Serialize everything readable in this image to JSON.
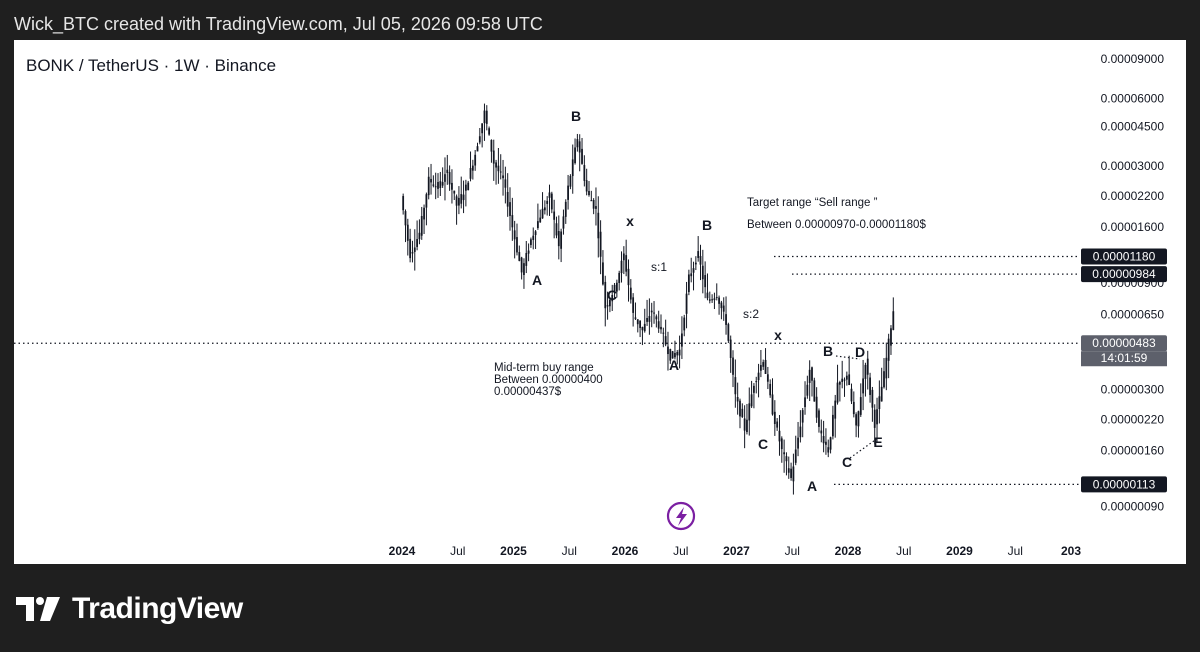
{
  "caption": "Wick_BTC created with TradingView.com, Jul 05, 2026 09:58 UTC",
  "symbol": "BONK / TetherUS · 1W · Binance",
  "brand": "TradingView",
  "logo_icon": "tradingview-logo-icon",
  "watermark_icon": "lightning-icon",
  "colors": {
    "candle": "#131722",
    "dotted": "#131722",
    "price_tag_bg": "#131722",
    "price_tag_text": "#ffffff",
    "current_tag_bg": "#5d606b",
    "watermark": "#7b1fa2",
    "frame": "#1f1f1f"
  },
  "chart_data": {
    "type": "line",
    "scale": "log",
    "y_ticks": [
      "0.00009000",
      "0.00006000",
      "0.00004500",
      "0.00003000",
      "0.00002200",
      "0.00001600",
      "0.00000900",
      "0.00000650",
      "0.00000300",
      "0.00000220",
      "0.00000160",
      "0.00000090"
    ],
    "x_ticks": [
      "2024",
      "Jul",
      "2025",
      "Jul",
      "2026",
      "Jul",
      "2027",
      "Jul",
      "2028",
      "Jul",
      "2029",
      "Jul",
      "203"
    ],
    "series": [
      {
        "x": [
          "2024-01",
          "2024-02",
          "2024-03",
          "2024-04",
          "2024-05",
          "2024-06",
          "2024-07",
          "2024-08",
          "2024-09",
          "2024-10",
          "2024-11",
          "2024-12",
          "2025-01",
          "2025-02",
          "2025-03",
          "2025-04",
          "2025-05",
          "2025-06",
          "2025-07",
          "2025-08",
          "2025-09",
          "2025-10",
          "2025-11",
          "2025-12",
          "2026-01",
          "2026-02",
          "2026-03",
          "2026-04",
          "2026-05",
          "2026-06",
          "2026-07",
          "2026-08",
          "2026-09",
          "2026-10",
          "2026-11",
          "2026-12",
          "2027-01",
          "2027-02",
          "2027-03",
          "2027-04",
          "2027-05",
          "2027-06",
          "2027-07",
          "2027-08",
          "2027-09",
          "2027-10",
          "2027-11",
          "2027-12",
          "2028-01",
          "2028-02",
          "2028-03",
          "2028-04",
          "2028-05",
          "2028-06"
        ],
        "values": [
          2.2e-05,
          1.2e-05,
          1.5e-05,
          2.6e-05,
          2.4e-05,
          2.8e-05,
          2e-05,
          2.4e-05,
          3.4e-05,
          5.2e-05,
          3.1e-05,
          2.6e-05,
          1.6e-05,
          1e-05,
          1.4e-05,
          1.8e-05,
          2.2e-05,
          1.3e-05,
          2.4e-05,
          4e-05,
          2.3e-05,
          1.9e-05,
          7e-06,
          8.5e-06,
          1.2e-05,
          6.5e-06,
          5.5e-06,
          6.8e-06,
          5.5e-06,
          4.2e-06,
          4.5e-06,
          9.5e-06,
          1.2e-05,
          7.5e-06,
          8e-06,
          6e-06,
          2.8e-06,
          2e-06,
          3.2e-06,
          4.1e-06,
          2.4e-06,
          1.6e-06,
          1.2e-06,
          2.1e-06,
          3.7e-06,
          2e-06,
          1.6e-06,
          3.1e-06,
          3.5e-06,
          2e-06,
          4e-06,
          2.1e-06,
          3.5e-06,
          6.8e-06
        ]
      }
    ],
    "horizontal_levels": [
      {
        "value": 1.18e-05,
        "label": "0.00001180",
        "style": "dotted"
      },
      {
        "value": 9.84e-06,
        "label": "0.00000984",
        "style": "dotted"
      },
      {
        "value": 4.83e-06,
        "label": "0.00000483",
        "countdown": "14:01:59",
        "style": "dotted",
        "current": true
      },
      {
        "value": 1.13e-06,
        "label": "0.00000113",
        "style": "dotted"
      }
    ],
    "wave_labels": [
      "B",
      "A",
      "C",
      "x",
      "B",
      "s:1",
      "A",
      "s:2",
      "x",
      "C",
      "A",
      "B",
      "D",
      "C",
      "E"
    ],
    "annotations": {
      "target_title": "Target range “Sell range ”",
      "target_range": "Between 0.00000970-0.00001180$",
      "buy_title": "Mid-term buy range",
      "buy_between": "Between 0.00000400",
      "buy_upper": "0.00000437$"
    }
  }
}
